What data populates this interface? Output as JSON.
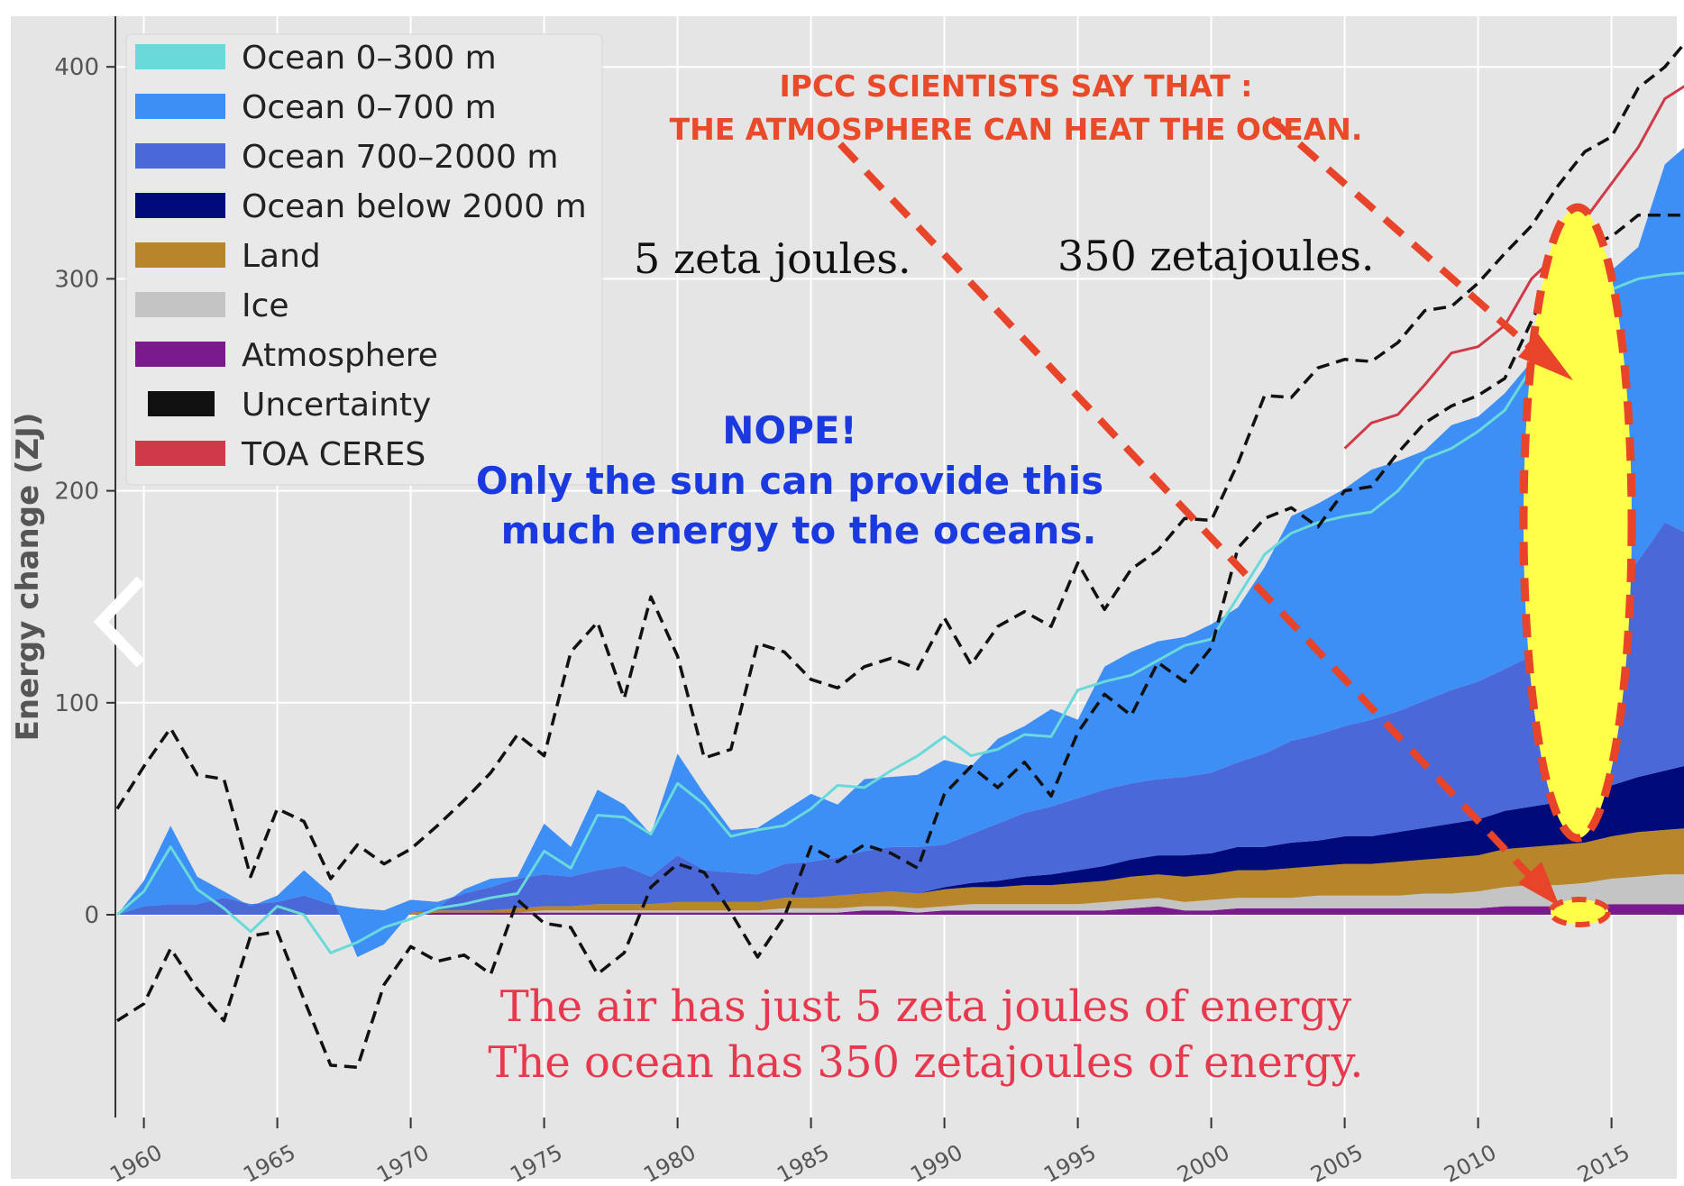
{
  "chart_data": {
    "type": "area",
    "ylabel": "Energy change (ZJ)",
    "xlabel": "",
    "xlim": [
      1959,
      2018
    ],
    "ylim": [
      -95,
      415
    ],
    "yticks": [
      0,
      100,
      200,
      300,
      400
    ],
    "xticks": [
      1960,
      1965,
      1970,
      1975,
      1980,
      1985,
      1990,
      1995,
      2000,
      2005,
      2010,
      2015
    ],
    "grid": true,
    "legend_position": "top-left",
    "x": [
      1959,
      1960,
      1961,
      1962,
      1963,
      1964,
      1965,
      1966,
      1967,
      1968,
      1969,
      1970,
      1971,
      1972,
      1973,
      1974,
      1975,
      1976,
      1977,
      1978,
      1979,
      1980,
      1981,
      1982,
      1983,
      1984,
      1985,
      1986,
      1987,
      1988,
      1989,
      1990,
      1991,
      1992,
      1993,
      1994,
      1995,
      1996,
      1997,
      1998,
      1999,
      2000,
      2001,
      2002,
      2003,
      2004,
      2005,
      2006,
      2007,
      2008,
      2009,
      2010,
      2011,
      2012,
      2013,
      2014,
      2015,
      2016,
      2017,
      2018
    ],
    "stacked": [
      {
        "name": "Atmosphere",
        "color": "#7a1a8c",
        "values": [
          0,
          0,
          0,
          0,
          0,
          0,
          0,
          0,
          0,
          0,
          0,
          0,
          1,
          1,
          1,
          1,
          1,
          1,
          1,
          1,
          1,
          1,
          1,
          1,
          1,
          1,
          1,
          1,
          2,
          2,
          1,
          2,
          2,
          2,
          2,
          2,
          2,
          2,
          3,
          4,
          2,
          2,
          3,
          3,
          3,
          3,
          3,
          3,
          3,
          3,
          3,
          3,
          4,
          4,
          4,
          4,
          5,
          5,
          5,
          5
        ]
      },
      {
        "name": "Ice",
        "color": "#c4c4c4",
        "values": [
          0,
          0,
          0,
          0,
          0,
          0,
          0,
          0,
          0,
          0,
          0,
          0,
          0,
          0,
          0,
          0,
          1,
          1,
          1,
          1,
          1,
          1,
          1,
          1,
          1,
          2,
          2,
          2,
          2,
          2,
          2,
          2,
          3,
          3,
          3,
          3,
          3,
          4,
          4,
          4,
          4,
          5,
          5,
          5,
          5,
          6,
          6,
          6,
          6,
          7,
          7,
          8,
          9,
          10,
          10,
          11,
          12,
          13,
          14,
          14
        ]
      },
      {
        "name": "Land",
        "color": "#b8862a",
        "values": [
          0,
          0,
          0,
          0,
          0,
          0,
          0,
          0,
          0,
          0,
          0,
          1,
          1,
          1,
          1,
          2,
          2,
          2,
          3,
          3,
          3,
          4,
          4,
          4,
          4,
          5,
          5,
          6,
          6,
          7,
          7,
          8,
          8,
          8,
          9,
          9,
          10,
          10,
          11,
          11,
          12,
          12,
          13,
          13,
          14,
          14,
          15,
          15,
          16,
          16,
          17,
          17,
          18,
          18,
          19,
          19,
          20,
          21,
          21,
          22
        ]
      },
      {
        "name": "Ocean below 2000 m",
        "color": "#000a78",
        "values": [
          0,
          0,
          0,
          0,
          0,
          0,
          0,
          0,
          0,
          0,
          0,
          0,
          0,
          0,
          0,
          0,
          0,
          0,
          0,
          0,
          0,
          0,
          0,
          0,
          0,
          0,
          0,
          0,
          0,
          0,
          0,
          1,
          2,
          3,
          4,
          5,
          6,
          7,
          8,
          9,
          10,
          10,
          11,
          11,
          12,
          12,
          13,
          13,
          14,
          15,
          16,
          17,
          18,
          19,
          20,
          22,
          24,
          26,
          28,
          30
        ]
      },
      {
        "name": "Ocean 700–2000 m",
        "color": "#4a68d8",
        "values": [
          0,
          4,
          5,
          5,
          8,
          5,
          6,
          9,
          5,
          3,
          2,
          6,
          4,
          8,
          11,
          14,
          15,
          14,
          16,
          18,
          13,
          22,
          15,
          14,
          13,
          16,
          17,
          18,
          20,
          21,
          22,
          20,
          23,
          27,
          30,
          32,
          34,
          36,
          36,
          36,
          37,
          38,
          40,
          44,
          48,
          50,
          52,
          55,
          57,
          60,
          63,
          65,
          67,
          71,
          72,
          80,
          90,
          102,
          117,
          108
        ]
      },
      {
        "name": "Ocean 0–700 m",
        "color": "#3d8ef5",
        "values": [
          0,
          12,
          37,
          13,
          3,
          -1,
          3,
          12,
          5,
          -23,
          -16,
          -6,
          -3,
          2,
          4,
          1,
          24,
          14,
          38,
          29,
          20,
          48,
          36,
          20,
          22,
          25,
          32,
          25,
          34,
          33,
          34,
          40,
          32,
          40,
          41,
          46,
          37,
          58,
          62,
          65,
          66,
          70,
          73,
          88,
          106,
          109,
          112,
          118,
          118,
          118,
          125,
          125,
          130,
          139,
          145,
          142,
          153,
          148,
          169,
          186
        ]
      }
    ],
    "lines": [
      {
        "name": "Ocean 0–300 m",
        "color": "#6ad9d9",
        "values": [
          0,
          11,
          32,
          12,
          3,
          -8,
          4,
          0,
          -18,
          -13,
          -6,
          -2,
          3,
          5,
          8,
          10,
          30,
          22,
          47,
          46,
          38,
          62,
          52,
          37,
          40,
          42,
          50,
          61,
          60,
          68,
          75,
          84,
          75,
          78,
          85,
          84,
          106,
          110,
          113,
          120,
          127,
          130,
          150,
          170,
          180,
          185,
          188,
          190,
          200,
          215,
          220,
          228,
          238,
          258,
          280,
          287,
          295,
          300,
          302,
          303
        ]
      },
      {
        "name": "TOA CERES",
        "color": "#d03a48",
        "values": [
          null,
          null,
          null,
          null,
          null,
          null,
          null,
          null,
          null,
          null,
          null,
          null,
          null,
          null,
          null,
          null,
          null,
          null,
          null,
          null,
          null,
          null,
          null,
          null,
          null,
          null,
          null,
          null,
          null,
          null,
          null,
          null,
          null,
          null,
          null,
          null,
          null,
          null,
          null,
          null,
          null,
          null,
          null,
          null,
          null,
          null,
          220,
          232,
          236,
          250,
          265,
          268,
          278,
          300,
          312,
          328,
          345,
          362,
          385,
          393
        ]
      },
      {
        "name": "Uncertainty",
        "color": "#111111",
        "dashed": true,
        "values": [
          50,
          70,
          88,
          66,
          64,
          18,
          50,
          44,
          17,
          33,
          24,
          31,
          42,
          54,
          67,
          85,
          75,
          124,
          138,
          102,
          150,
          122,
          74,
          78,
          128,
          124,
          111,
          107,
          117,
          121,
          116,
          140,
          118,
          136,
          143,
          136,
          166,
          144,
          163,
          172,
          187,
          186,
          213,
          245,
          244,
          258,
          262,
          261,
          270,
          285,
          287,
          298,
          312,
          325,
          344,
          360,
          367,
          390,
          400,
          415
        ]
      },
      {
        "name": "Uncertainty",
        "color": "#111111",
        "dashed": true,
        "values": [
          -50,
          -42,
          -16,
          -35,
          -50,
          -10,
          -8,
          -40,
          -71,
          -72,
          -33,
          -15,
          -22,
          -19,
          -28,
          7,
          -4,
          -6,
          -28,
          -18,
          13,
          24,
          20,
          1,
          -20,
          -1,
          32,
          25,
          33,
          29,
          22,
          57,
          70,
          60,
          72,
          56,
          86,
          104,
          94,
          119,
          110,
          126,
          173,
          187,
          192,
          183,
          200,
          202,
          218,
          232,
          240,
          245,
          253,
          280,
          305,
          315,
          320,
          330,
          330,
          330
        ]
      }
    ],
    "legend": [
      "Ocean 0–300 m",
      "Ocean 0–700 m",
      "Ocean 700–2000 m",
      "Ocean below 2000 m",
      "Land",
      "Ice",
      "Atmosphere",
      "Uncertainty",
      "TOA CERES"
    ],
    "annotations": {
      "ipcc_line1": "IPCC  SCIENTISTS SAY THAT :",
      "ipcc_line2": "THE ATMOSPHERE CAN HEAT THE OCEAN.",
      "air_amount": "5 zeta joules.",
      "ocean_amount": "350 zetajoules.",
      "nope": "NOPE!",
      "sun_line1": "Only the sun can provide this",
      "sun_line2": "much energy to the oceans.",
      "bottom_line1": "The air has just  5 zeta joules of energy",
      "bottom_line2": "The ocean has 350 zetajoules of energy."
    },
    "annotation_colors": {
      "ipcc": "#e84a2a",
      "nope": "#1a3ae0",
      "bottom": "#e8384e",
      "arrow": "#e8442a",
      "highlight": "#ffff4a"
    }
  },
  "nav": {
    "icon": "chevron-left-icon"
  }
}
